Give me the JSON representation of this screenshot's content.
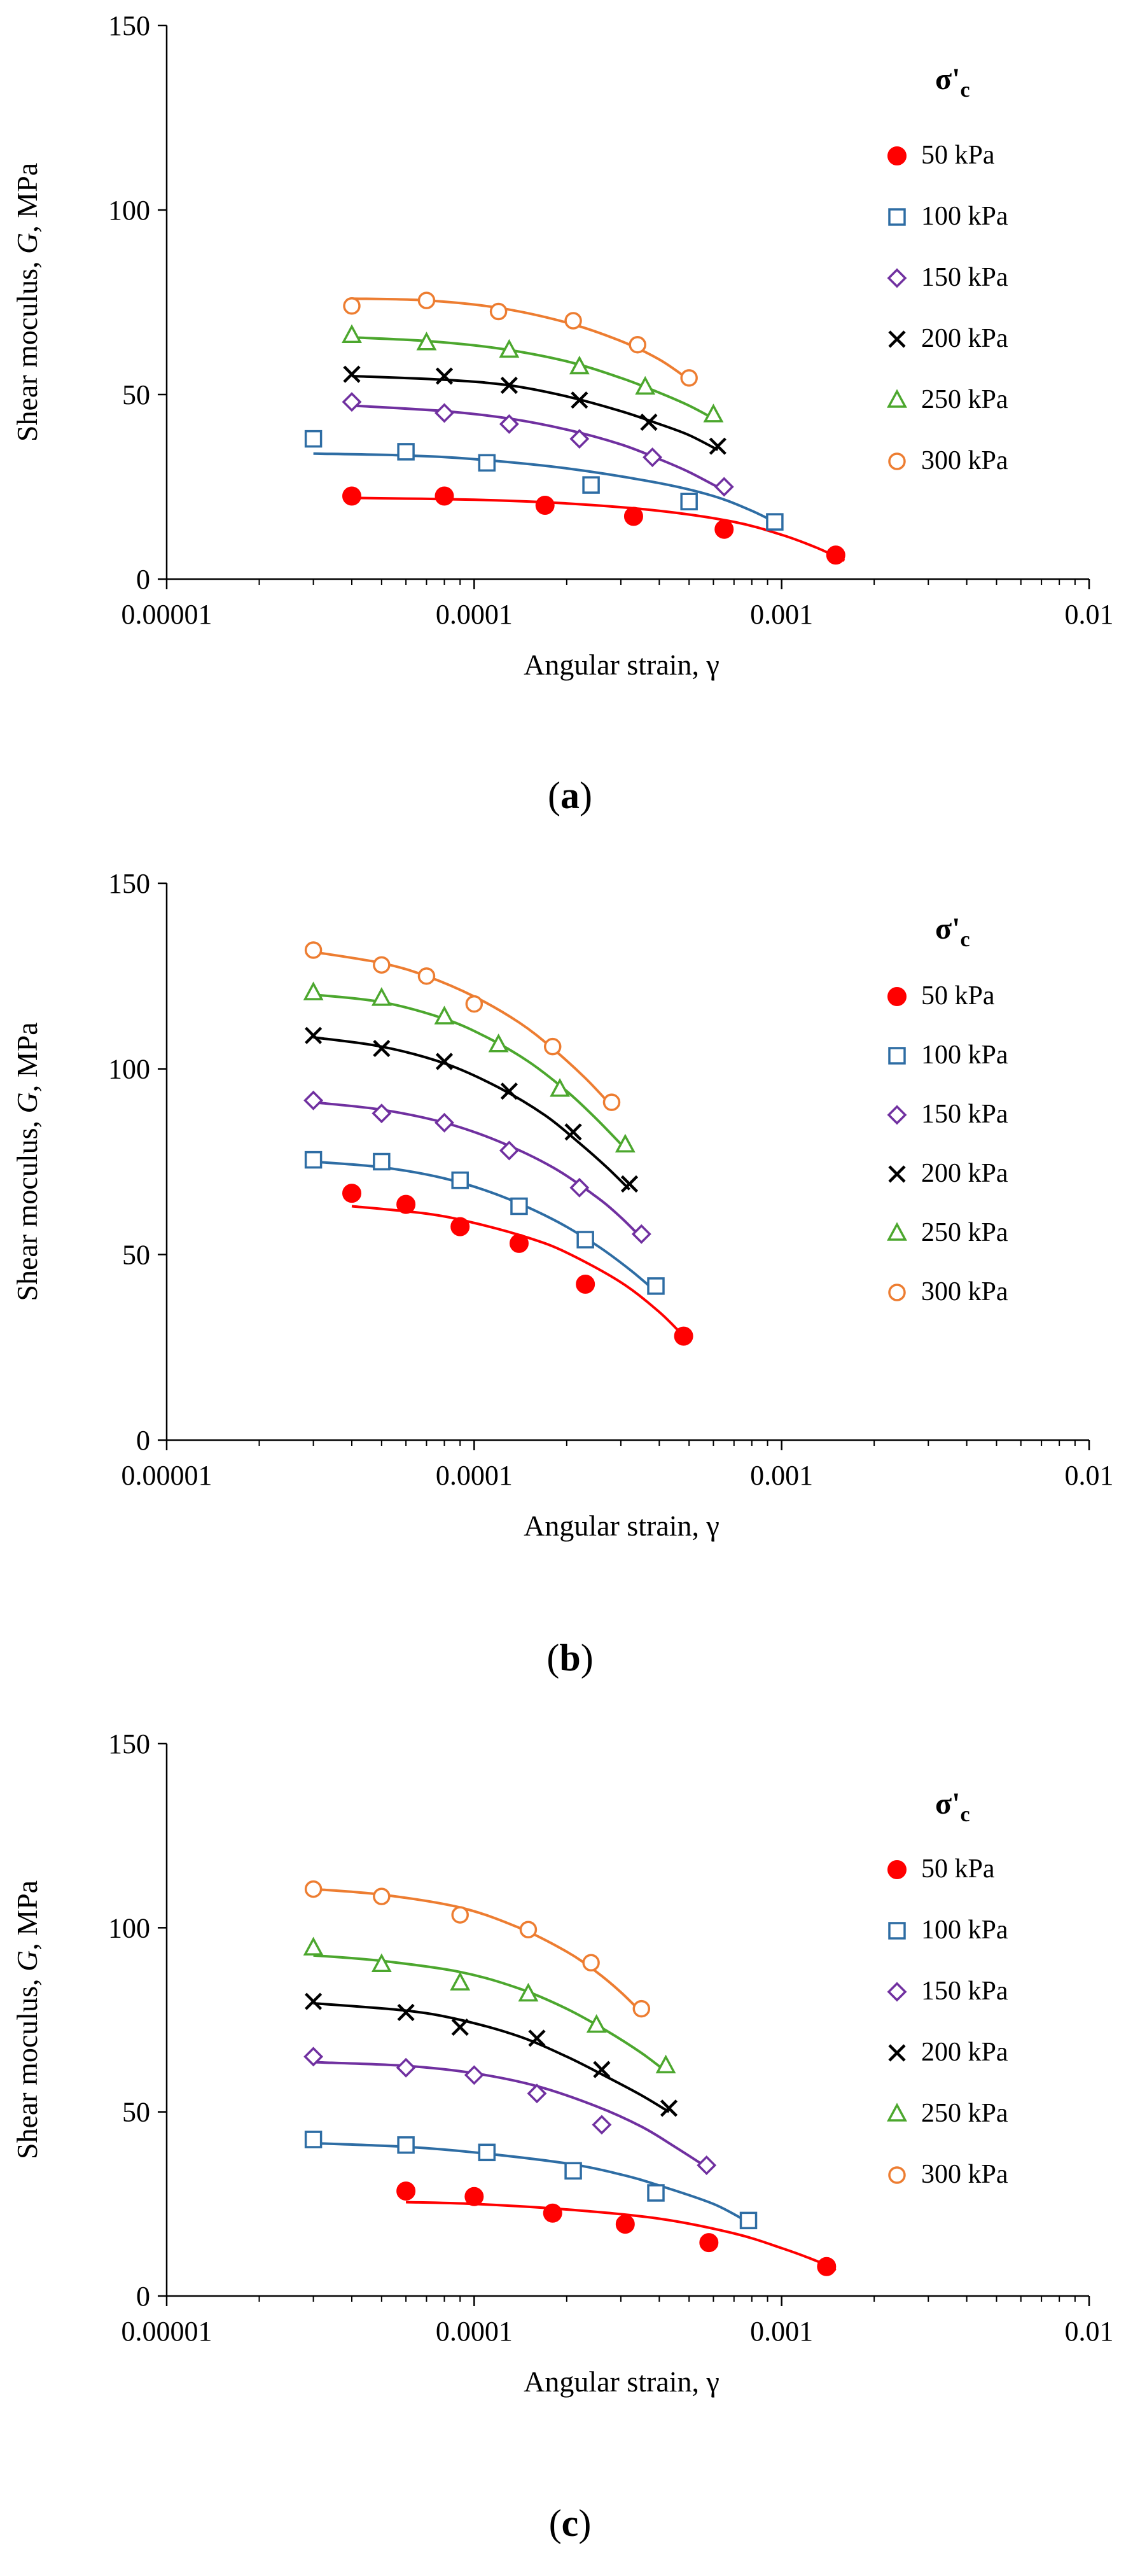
{
  "figure": {
    "panels": [
      "a",
      "b",
      "c"
    ]
  },
  "legend": {
    "title_main": "σ'",
    "title_sub": "c"
  },
  "series_style": [
    {
      "name": "50 kPa",
      "marker": "filled-circle",
      "color": "#ff0000"
    },
    {
      "name": "100 kPa",
      "marker": "open-square",
      "color": "#2e6da4"
    },
    {
      "name": "150 kPa",
      "marker": "open-diamond",
      "color": "#7030a0"
    },
    {
      "name": "200 kPa",
      "marker": "cross",
      "color": "#000000"
    },
    {
      "name": "250 kPa",
      "marker": "open-triangle",
      "color": "#4ca72e"
    },
    {
      "name": "300 kPa",
      "marker": "open-circle",
      "color": "#ed7d31"
    }
  ],
  "chart_data": [
    {
      "type": "scatter",
      "panel_label": "(a)",
      "panel_letter": "a",
      "xlabel": "Angular strain, γ",
      "ylabel_pre": "Shear moculus, ",
      "ylabel_italic": "G",
      "ylabel_post": ", MPa",
      "x_scale": "log",
      "xlim": [
        1e-05,
        0.01
      ],
      "ylim": [
        0,
        150
      ],
      "x_ticks": [
        "0.00001",
        "0.0001",
        "0.001",
        "0.01"
      ],
      "y_ticks": [
        "0",
        "50",
        "100",
        "150"
      ],
      "legend_position": "right",
      "series": [
        {
          "name": "50 kPa",
          "x": [
            4e-05,
            8e-05,
            0.00017,
            0.00033,
            0.00065,
            0.0015
          ],
          "y": [
            22.5,
            22.5,
            20,
            17,
            13.5,
            6.5
          ],
          "fit_x": [
            4e-05,
            0.0001,
            0.0002,
            0.0004,
            0.0007,
            0.001,
            0.0013,
            0.0016
          ],
          "fit_y": [
            22,
            21.5,
            20.5,
            18.5,
            15.5,
            12,
            8.5,
            5
          ]
        },
        {
          "name": "100 kPa",
          "x": [
            3e-05,
            6e-05,
            0.00011,
            0.00024,
            0.0005,
            0.00095
          ],
          "y": [
            38,
            34.5,
            31.5,
            25.5,
            21,
            15.5
          ],
          "fit_x": [
            3e-05,
            6e-05,
            0.0001,
            0.0002,
            0.0004,
            0.0006,
            0.0008,
            0.001
          ],
          "fit_y": [
            34,
            33.5,
            32.5,
            30,
            26,
            22.5,
            18.5,
            14.5
          ]
        },
        {
          "name": "150 kPa",
          "x": [
            4e-05,
            8e-05,
            0.00013,
            0.00022,
            0.00038,
            0.00065
          ],
          "y": [
            48,
            45,
            42,
            38,
            33,
            25
          ],
          "fit_x": [
            4e-05,
            8e-05,
            0.00013,
            0.0002,
            0.0003,
            0.0004,
            0.0005,
            0.00065
          ],
          "fit_y": [
            47,
            45.5,
            43.5,
            40.5,
            36.5,
            32.5,
            29,
            24
          ]
        },
        {
          "name": "200 kPa",
          "x": [
            4e-05,
            8e-05,
            0.00013,
            0.00022,
            0.00037,
            0.00062
          ],
          "y": [
            55.5,
            55,
            52.5,
            48.5,
            42.5,
            36
          ],
          "fit_x": [
            4e-05,
            8e-05,
            0.00013,
            0.0002,
            0.0003,
            0.0004,
            0.0005,
            0.00062
          ],
          "fit_y": [
            55,
            54,
            52.5,
            49.5,
            45.5,
            42,
            39,
            35
          ]
        },
        {
          "name": "250 kPa",
          "x": [
            4e-05,
            7e-05,
            0.00013,
            0.00022,
            0.00036,
            0.0006
          ],
          "y": [
            66,
            64,
            62,
            57.5,
            52,
            44.5
          ],
          "fit_x": [
            4e-05,
            7e-05,
            0.00012,
            0.0002,
            0.0003,
            0.0004,
            0.0005,
            0.0006
          ],
          "fit_y": [
            65.5,
            64.5,
            62.5,
            59,
            54.5,
            50.5,
            47,
            43.5
          ]
        },
        {
          "name": "300 kPa",
          "x": [
            4e-05,
            7e-05,
            0.00012,
            0.00021,
            0.00034,
            0.0005
          ],
          "y": [
            74,
            75.5,
            72.5,
            70,
            63.5,
            54.5
          ],
          "fit_x": [
            4e-05,
            7e-05,
            0.00012,
            0.0002,
            0.0003,
            0.0004,
            0.0005
          ],
          "fit_y": [
            76,
            75.5,
            73.5,
            69.5,
            64.5,
            59.5,
            54
          ]
        }
      ]
    },
    {
      "type": "scatter",
      "panel_label": "(b)",
      "panel_letter": "b",
      "xlabel": "Angular strain, γ",
      "ylabel_pre": "Shear moculus, ",
      "ylabel_italic": "G",
      "ylabel_post": ", MPa",
      "x_scale": "log",
      "xlim": [
        1e-05,
        0.01
      ],
      "ylim": [
        0,
        150
      ],
      "x_ticks": [
        "0.00001",
        "0.0001",
        "0.001",
        "0.01"
      ],
      "y_ticks": [
        "0",
        "50",
        "100",
        "150"
      ],
      "legend_position": "right",
      "series": [
        {
          "name": "50 kPa",
          "x": [
            4e-05,
            6e-05,
            9e-05,
            0.00014,
            0.00023,
            0.00048
          ],
          "y": [
            66.5,
            63.5,
            57.5,
            53,
            42,
            28
          ],
          "fit_x": [
            4e-05,
            7e-05,
            0.0001,
            0.00015,
            0.0002,
            0.0003,
            0.0004,
            0.00048
          ],
          "fit_y": [
            63,
            61,
            58.5,
            54.5,
            50.5,
            42.5,
            34.5,
            28
          ]
        },
        {
          "name": "100 kPa",
          "x": [
            3e-05,
            5e-05,
            9e-05,
            0.00014,
            0.00023,
            0.00039
          ],
          "y": [
            75.5,
            75,
            70,
            63,
            54,
            41.5
          ],
          "fit_x": [
            3e-05,
            5e-05,
            8e-05,
            0.00012,
            0.00018,
            0.00025,
            0.00032,
            0.00039
          ],
          "fit_y": [
            75,
            73.5,
            70.5,
            66,
            59.5,
            52.5,
            46,
            40
          ]
        },
        {
          "name": "150 kPa",
          "x": [
            3e-05,
            5e-05,
            8e-05,
            0.00013,
            0.00022,
            0.00035
          ],
          "y": [
            91.5,
            88,
            85.5,
            78,
            68,
            55.5
          ],
          "fit_x": [
            3e-05,
            5e-05,
            8e-05,
            0.00012,
            0.00018,
            0.00025,
            0.0003,
            0.00035
          ],
          "fit_y": [
            91,
            89,
            85.5,
            80.5,
            73.5,
            65.5,
            60,
            54.5
          ]
        },
        {
          "name": "200 kPa",
          "x": [
            3e-05,
            5e-05,
            8e-05,
            0.00013,
            0.00021,
            0.00032
          ],
          "y": [
            109,
            105.5,
            102,
            94,
            83,
            69
          ],
          "fit_x": [
            3e-05,
            5e-05,
            8e-05,
            0.00012,
            0.00017,
            0.00022,
            0.00027,
            0.00032
          ],
          "fit_y": [
            108.5,
            106,
            101.5,
            95,
            87.5,
            80,
            73.5,
            67.5
          ]
        },
        {
          "name": "250 kPa",
          "x": [
            3e-05,
            5e-05,
            8e-05,
            0.00012,
            0.00019,
            0.00031
          ],
          "y": [
            120.5,
            119,
            114,
            106.5,
            94.5,
            79.5
          ],
          "fit_x": [
            3e-05,
            5e-05,
            8e-05,
            0.00011,
            0.00015,
            0.0002,
            0.00025,
            0.00031
          ],
          "fit_y": [
            120,
            118,
            113.5,
            108.5,
            102,
            94,
            86.5,
            78.5
          ]
        },
        {
          "name": "300 kPa",
          "x": [
            3e-05,
            5e-05,
            7e-05,
            0.0001,
            0.00018,
            0.00028
          ],
          "y": [
            132,
            128,
            125,
            117.5,
            106,
            91
          ],
          "fit_x": [
            3e-05,
            5e-05,
            7e-05,
            0.0001,
            0.00014,
            0.00018,
            0.00023,
            0.00028
          ],
          "fit_y": [
            131.5,
            128.5,
            125,
            119.5,
            112.5,
            105.5,
            97.5,
            90
          ]
        }
      ]
    },
    {
      "type": "scatter",
      "panel_label": "(c)",
      "panel_letter": "c",
      "xlabel": "Angular strain, γ",
      "ylabel_pre": "Shear moculus, ",
      "ylabel_italic": "G",
      "ylabel_post": ", MPa",
      "x_scale": "log",
      "xlim": [
        1e-05,
        0.01
      ],
      "ylim": [
        0,
        150
      ],
      "x_ticks": [
        "0.00001",
        "0.0001",
        "0.001",
        "0.01"
      ],
      "y_ticks": [
        "0",
        "50",
        "100",
        "150"
      ],
      "legend_position": "right",
      "series": [
        {
          "name": "50 kPa",
          "x": [
            6e-05,
            0.0001,
            0.00018,
            0.00031,
            0.00058,
            0.0014
          ],
          "y": [
            28.5,
            27,
            22.5,
            19.5,
            14.5,
            8
          ],
          "fit_x": [
            6e-05,
            0.0001,
            0.0002,
            0.0004,
            0.0007,
            0.001,
            0.0013,
            0.0015
          ],
          "fit_y": [
            25.5,
            25,
            23.5,
            21,
            17,
            13,
            9.5,
            7
          ]
        },
        {
          "name": "100 kPa",
          "x": [
            3e-05,
            6e-05,
            0.00011,
            0.00021,
            0.00039,
            0.00078
          ],
          "y": [
            42.5,
            41,
            39,
            34,
            28,
            20.5
          ],
          "fit_x": [
            3e-05,
            6e-05,
            0.0001,
            0.0002,
            0.0003,
            0.0004,
            0.0006,
            0.00078
          ],
          "fit_y": [
            41.5,
            40.5,
            39,
            36,
            33,
            30,
            25,
            20
          ]
        },
        {
          "name": "150 kPa",
          "x": [
            3e-05,
            6e-05,
            0.0001,
            0.00016,
            0.00026,
            0.00057
          ],
          "y": [
            65,
            62,
            60,
            55,
            46.5,
            35.5
          ],
          "fit_x": [
            3e-05,
            6e-05,
            0.0001,
            0.00016,
            0.00025,
            0.00035,
            0.00045,
            0.00057
          ],
          "fit_y": [
            63.5,
            62.5,
            60.5,
            57,
            51.5,
            46,
            40.5,
            35
          ]
        },
        {
          "name": "200 kPa",
          "x": [
            3e-05,
            6e-05,
            9e-05,
            0.00016,
            0.00026,
            0.00043
          ],
          "y": [
            80,
            77,
            73,
            70,
            61.5,
            51
          ],
          "fit_x": [
            3e-05,
            6e-05,
            9e-05,
            0.00014,
            0.0002,
            0.00027,
            0.00035,
            0.00043
          ],
          "fit_y": [
            79.5,
            77.5,
            75,
            70.5,
            65,
            59.5,
            54.5,
            50
          ]
        },
        {
          "name": "250 kPa",
          "x": [
            3e-05,
            5e-05,
            9e-05,
            0.00015,
            0.00025,
            0.00042
          ],
          "y": [
            94.5,
            90,
            85,
            82,
            73.5,
            62.5
          ],
          "fit_x": [
            3e-05,
            5e-05,
            9e-05,
            0.00014,
            0.0002,
            0.00027,
            0.00035,
            0.00042
          ],
          "fit_y": [
            92.5,
            91,
            88,
            83.5,
            78,
            72,
            66,
            61
          ]
        },
        {
          "name": "300 kPa",
          "x": [
            3e-05,
            5e-05,
            9e-05,
            0.00015,
            0.00024,
            0.00035
          ],
          "y": [
            110.5,
            108.5,
            103.5,
            99.5,
            90.5,
            78
          ],
          "fit_x": [
            3e-05,
            5e-05,
            9e-05,
            0.00014,
            0.0002,
            0.00025,
            0.0003,
            0.00035
          ],
          "fit_y": [
            110.5,
            109,
            105.5,
            100,
            93.5,
            88,
            82.5,
            77
          ]
        }
      ]
    }
  ]
}
